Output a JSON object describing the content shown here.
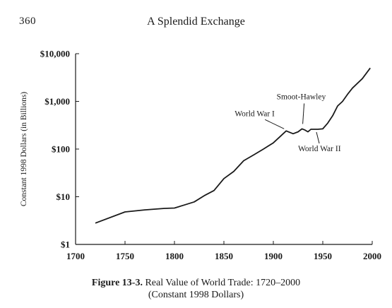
{
  "header": {
    "page_number": "360",
    "running_title": "A Splendid Exchange"
  },
  "figure": {
    "caption_label": "Figure 13-3.",
    "caption_title": "Real Value of World Trade: 1720–2000",
    "caption_subtitle": "(Constant 1998 Dollars)"
  },
  "chart_data": {
    "type": "line",
    "title": "",
    "xlabel": "",
    "ylabel": "Constant 1998 Dollars (in Billions)",
    "y_scale": "log",
    "xlim": [
      1700,
      2000
    ],
    "ylim": [
      1,
      10000
    ],
    "x_ticks": [
      1700,
      1750,
      1800,
      1850,
      1900,
      1950,
      2000
    ],
    "x_tick_labels": [
      "1700",
      "1750",
      "1800",
      "1850",
      "1900",
      "1950",
      "2000"
    ],
    "y_ticks": [
      1,
      10,
      100,
      1000,
      10000
    ],
    "y_tick_labels": [
      "$1",
      "$10",
      "$100",
      "$1,000",
      "$10,000"
    ],
    "grid": false,
    "series": [
      {
        "x": [
          1720,
          1750,
          1770,
          1790,
          1800,
          1810,
          1820,
          1830,
          1840,
          1850,
          1860,
          1870,
          1880,
          1890,
          1900,
          1913,
          1920,
          1925,
          1929,
          1932,
          1935,
          1938,
          1945,
          1950,
          1955,
          1960,
          1965,
          1970,
          1975,
          1980,
          1990,
          1998
        ],
        "y": [
          2.8,
          4.8,
          5.3,
          5.7,
          5.8,
          6.7,
          7.8,
          10.5,
          13.5,
          24,
          34,
          57,
          75,
          100,
          135,
          240,
          210,
          230,
          265,
          250,
          230,
          260,
          260,
          265,
          350,
          500,
          800,
          1000,
          1400,
          1900,
          3000,
          5000
        ]
      }
    ],
    "annotations": [
      {
        "text": "World War I",
        "x": 1913,
        "y": 240
      },
      {
        "text": "Smoot-Hawley",
        "x": 1929,
        "y": 265
      },
      {
        "text": "World War II",
        "x": 1945,
        "y": 260
      }
    ]
  }
}
